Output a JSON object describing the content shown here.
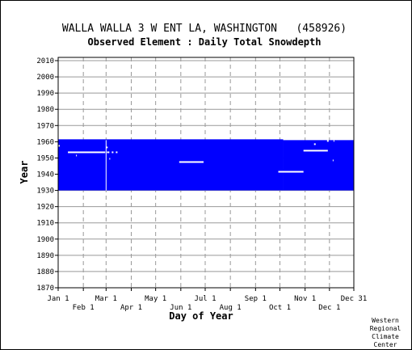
{
  "chart_data": {
    "type": "heatmap",
    "title": "WALLA WALLA 3 W ENT LA, WASHINGTON   (458926)",
    "subtitle": "Observed Element : Daily Total Snowdepth",
    "xlabel": "Day of Year",
    "ylabel": "Year",
    "xlim": [
      1,
      365
    ],
    "ylim": [
      1870,
      2012
    ],
    "y_ticks": [
      1870,
      1880,
      1890,
      1900,
      1910,
      1920,
      1930,
      1940,
      1950,
      1960,
      1970,
      1980,
      1990,
      2000,
      2010
    ],
    "x_ticks_upper": [
      {
        "label": "Jan 1",
        "day": 1
      },
      {
        "label": "Mar 1",
        "day": 60
      },
      {
        "label": "May 1",
        "day": 121
      },
      {
        "label": "Jul 1",
        "day": 182
      },
      {
        "label": "Sep 1",
        "day": 244
      },
      {
        "label": "Nov 1",
        "day": 305
      },
      {
        "label": "Dec 31",
        "day": 365
      }
    ],
    "x_ticks_lower": [
      {
        "label": "Feb 1",
        "day": 32
      },
      {
        "label": "Apr 1",
        "day": 91
      },
      {
        "label": "Jun 1",
        "day": 152
      },
      {
        "label": "Aug 1",
        "day": 213
      },
      {
        "label": "Oct 1",
        "day": 274
      },
      {
        "label": "Dec 1",
        "day": 335
      }
    ],
    "grid": true,
    "colors": {
      "observed": "#0000ff",
      "missing": "#ffffff",
      "grid": "#999999",
      "axis": "#000000"
    },
    "observed_blocks": [
      {
        "year_start": 1930,
        "year_end": 1961.5,
        "day_start": 1,
        "day_end": 278
      },
      {
        "year_start": 1930,
        "year_end": 1961,
        "day_start": 278,
        "day_end": 365
      }
    ],
    "missing_segments": [
      {
        "year": 1953.5,
        "day_start": 13,
        "day_end": 59
      },
      {
        "year": 1947.5,
        "day_start": 150,
        "day_end": 180
      },
      {
        "year": 1941.5,
        "day_start": 272,
        "day_end": 303
      },
      {
        "year": 1954.5,
        "day_start": 303,
        "day_end": 333
      },
      {
        "year": 1953.5,
        "day_start": 61,
        "day_end": 64
      },
      {
        "year": 1953.5,
        "day_start": 67,
        "day_end": 69
      },
      {
        "year": 1953.5,
        "day_start": 72,
        "day_end": 74
      },
      {
        "year": 1957.5,
        "day_start": 1,
        "day_end": 3
      },
      {
        "year": 1956.5,
        "day_start": 60,
        "day_end": 62
      },
      {
        "year": 1949.5,
        "day_start": 64,
        "day_end": 65
      },
      {
        "year": 1951.5,
        "day_start": 23,
        "day_end": 24
      },
      {
        "year": 1958.5,
        "day_start": 316,
        "day_end": 318
      },
      {
        "year": 1960.5,
        "day_start": 332,
        "day_end": 334
      },
      {
        "year": 1960.5,
        "day_start": 340,
        "day_end": 341
      },
      {
        "year": 1948.5,
        "day_start": 339,
        "day_end": 340
      }
    ],
    "missing_columns": [
      {
        "day": 59.5,
        "year_start": 1930,
        "year_end": 1961
      }
    ]
  },
  "credit": [
    "Western",
    "Regional",
    "Climate",
    "Center"
  ]
}
